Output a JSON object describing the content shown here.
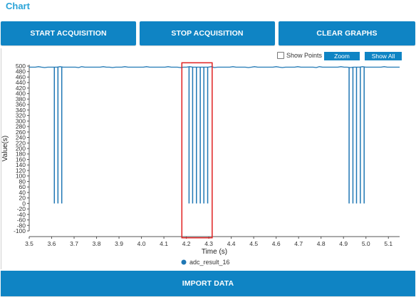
{
  "header": {
    "title": "Chart"
  },
  "toolbar": {
    "start_label": "START ACQUISITION",
    "stop_label": "STOP ACQUISITION",
    "clear_label": "CLEAR GRAPHS"
  },
  "chart_controls": {
    "show_points_label": "Show Points",
    "show_points_checked": false,
    "zoom_label": "Zoom",
    "show_all_label": "Show All"
  },
  "footer": {
    "import_label": "IMPORT DATA"
  },
  "colors": {
    "accent": "#0f84c4",
    "series": "#1f77b4",
    "highlight": "#e02020",
    "title": "#2aa3d8"
  },
  "chart_data": {
    "type": "line",
    "xlabel": "Time (s)",
    "ylabel": "Value(s)",
    "xlim": [
      3.5,
      5.15
    ],
    "ylim": [
      -100,
      500
    ],
    "x_ticks": [
      "3.5",
      "3.6",
      "3.7",
      "3.8",
      "3.9",
      "4.0",
      "4.1",
      "4.2",
      "4.3",
      "4.4",
      "4.5",
      "4.6",
      "4.7",
      "4.8",
      "4.9",
      "5.0",
      "5.1"
    ],
    "y_ticks": [
      500,
      480,
      460,
      440,
      420,
      400,
      380,
      360,
      340,
      320,
      300,
      280,
      260,
      240,
      220,
      200,
      180,
      160,
      140,
      120,
      100,
      80,
      60,
      40,
      20,
      0,
      -20,
      -40,
      -60,
      -80,
      -100
    ],
    "grid": false,
    "legend_position": "bottom-center",
    "baseline_value": 496,
    "series": [
      {
        "name": "adc_result_16",
        "drop_times": [
          3.612,
          3.628,
          3.645,
          4.212,
          4.228,
          4.245,
          4.262,
          4.278,
          4.295,
          4.925,
          4.942,
          4.958,
          4.975,
          4.992
        ],
        "drop_value": 0
      }
    ],
    "highlight_box": {
      "x_range": [
        4.18,
        4.315
      ],
      "y_range": [
        -125,
        512
      ]
    }
  }
}
